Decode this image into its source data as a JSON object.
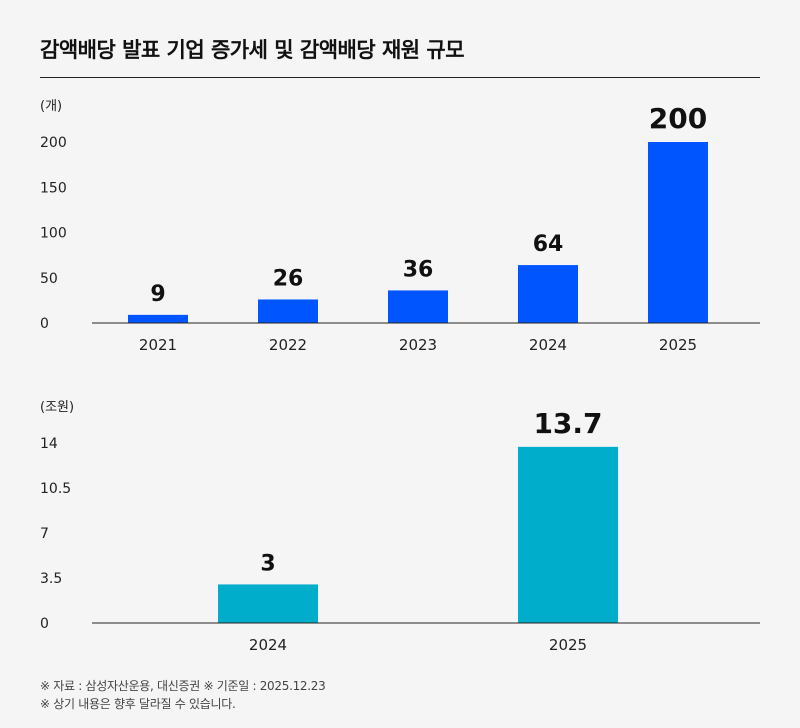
{
  "title": "감액배당 발표 기업 증가세 및 감액배당 재원 규모",
  "colors": {
    "top_bar": "#0055ff",
    "bottom_bar": "#00aecb",
    "axis": "#222222"
  },
  "chart_data": [
    {
      "type": "bar",
      "unit_label": "(개)",
      "categories": [
        "2021",
        "2022",
        "2023",
        "2024",
        "2025"
      ],
      "values": [
        9,
        26,
        36,
        64,
        200
      ],
      "data_labels": [
        "9",
        "26",
        "36",
        "64",
        "200"
      ],
      "yticks": [
        0,
        50,
        100,
        150,
        200
      ],
      "ytick_labels": [
        "0",
        "50",
        "100",
        "150",
        "200"
      ],
      "ylim": [
        0,
        200
      ],
      "color": "#0055ff",
      "grid": false,
      "legend": "none"
    },
    {
      "type": "bar",
      "unit_label": "(조원)",
      "categories": [
        "2024",
        "2025"
      ],
      "values": [
        3,
        13.7
      ],
      "data_labels": [
        "3",
        "13.7"
      ],
      "yticks": [
        0,
        3.5,
        7,
        10.5,
        14
      ],
      "ytick_labels": [
        "0",
        "3.5",
        "7",
        "10.5",
        "14"
      ],
      "ylim": [
        0,
        14
      ],
      "color": "#00aecb",
      "grid": false,
      "legend": "none"
    }
  ],
  "footnotes": [
    "※ 자료 : 삼성자산운용, 대신증권 ※ 기준일 : 2025.12.23",
    "※ 상기 내용은 향후 달라질 수 있습니다."
  ]
}
